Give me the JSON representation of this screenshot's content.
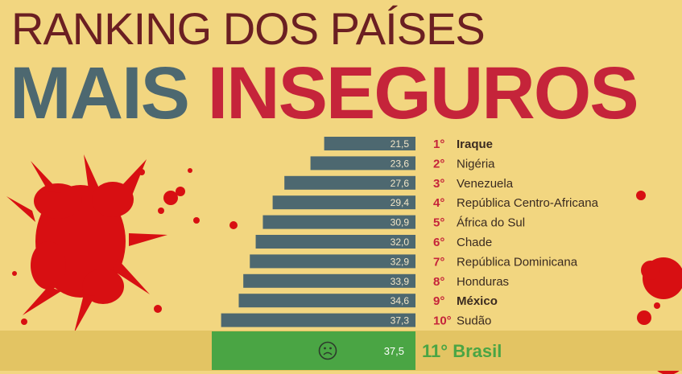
{
  "header": {
    "line1": "RANKING DOS PAÍSES",
    "line2_a": "MAIS",
    "line2_b": "INSEGUROS"
  },
  "colors": {
    "background": "#f2d680",
    "bar": "#4d6870",
    "highlight_band": "#e3c463",
    "highlight_bar": "#4aa544",
    "rank_red": "#c5243a",
    "title_dark": "#6b1f22",
    "splat": "#d80f12"
  },
  "icons": [
    "sad-face-icon",
    "blood-splatter-left",
    "blood-splatter-right"
  ],
  "chart_data": {
    "type": "bar",
    "orientation": "horizontal",
    "sort": "ascending",
    "value_scale_min": 0,
    "value_scale_max": 38,
    "categories": [
      "Iraque",
      "Nigéria",
      "Venezuela",
      "República Centro-Africana",
      "África do Sul",
      "Chade",
      "República Dominicana",
      "Honduras",
      "México",
      "Sudão"
    ],
    "ranks": [
      "1°",
      "2°",
      "3°",
      "4°",
      "5°",
      "6°",
      "7°",
      "8°",
      "9°",
      "10°"
    ],
    "value_labels": [
      "21,5",
      "23,6",
      "27,6",
      "29,4",
      "30,9",
      "32,0",
      "32,9",
      "33,9",
      "34,6",
      "37,3"
    ],
    "values": [
      21.5,
      23.6,
      27.6,
      29.4,
      30.9,
      32.0,
      32.9,
      33.9,
      34.6,
      37.3
    ],
    "bold_rows": [
      0,
      8
    ],
    "highlight": {
      "rank": "11°",
      "country": "Brasil",
      "value": 37.5,
      "value_label": "37,5"
    }
  }
}
